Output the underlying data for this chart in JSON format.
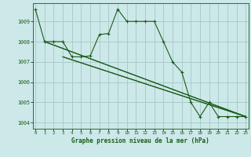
{
  "title": "Graphe pression niveau de la mer (hPa)",
  "bg_color": "#cce8e8",
  "grid_color": "#aacccc",
  "line_color": "#1a5c1a",
  "ylim": [
    1003.7,
    1009.9
  ],
  "xlim": [
    -0.3,
    23.3
  ],
  "yticks": [
    1004,
    1005,
    1006,
    1007,
    1008,
    1009
  ],
  "xticks": [
    0,
    1,
    2,
    3,
    4,
    5,
    6,
    7,
    8,
    9,
    10,
    11,
    12,
    13,
    14,
    15,
    16,
    17,
    18,
    19,
    20,
    21,
    22,
    23
  ],
  "series": [
    {
      "x": [
        0,
        1,
        2,
        3,
        4,
        5,
        6,
        7,
        8,
        9,
        10,
        11,
        12,
        13,
        14,
        15,
        16,
        17,
        18,
        19,
        20,
        21,
        22,
        23
      ],
      "y": [
        1009.6,
        1008.0,
        1008.0,
        1008.0,
        1007.25,
        1007.25,
        1007.3,
        1008.35,
        1008.4,
        1009.6,
        1009.0,
        1009.0,
        1009.0,
        1009.0,
        1008.0,
        1007.0,
        1006.5,
        1005.0,
        1004.3,
        1005.0,
        1004.3,
        1004.3,
        1004.3,
        1004.3
      ],
      "marker": true
    },
    {
      "x": [
        3,
        23
      ],
      "y": [
        1007.25,
        1004.3
      ],
      "marker": false
    },
    {
      "x": [
        3,
        23
      ],
      "y": [
        1007.25,
        1004.3
      ],
      "marker": false
    },
    {
      "x": [
        1,
        23
      ],
      "y": [
        1008.0,
        1004.3
      ],
      "marker": false
    },
    {
      "x": [
        1,
        23
      ],
      "y": [
        1008.0,
        1004.3
      ],
      "marker": false
    }
  ]
}
